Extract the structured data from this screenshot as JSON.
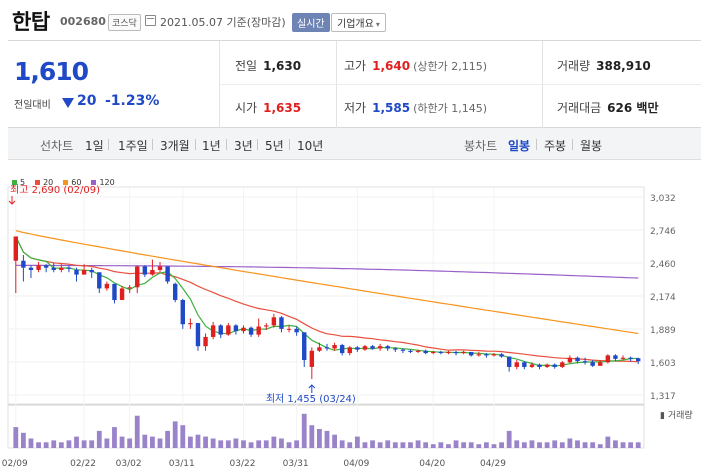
{
  "header": {
    "name": "한탑",
    "code": "002680",
    "market": "코스닥",
    "date": "2021.05.07 기준(장마감)",
    "realtime_label": "실시간",
    "overview_label": "기업개요"
  },
  "quote": {
    "price": "1,610",
    "change_label": "전일대비",
    "change": "20",
    "change_pct": "-1.23%",
    "prev_close_label": "전일",
    "prev_close": "1,630",
    "open_label": "시가",
    "open": "1,635",
    "high_label": "고가",
    "high": "1,640",
    "upper_limit": "(상한가 2,115)",
    "low_label": "저가",
    "low": "1,585",
    "lower_limit": "(하한가 1,145)",
    "volume_label": "거래량",
    "volume": "388,910",
    "amount_label": "거래대금",
    "amount": "626 백만"
  },
  "period_bar": {
    "line_chart_label": "선차트",
    "line_periods": [
      "1일",
      "1주일",
      "3개월",
      "1년",
      "3년",
      "5년",
      "10년"
    ],
    "candle_chart_label": "봉차트",
    "candle_periods": [
      "일봉",
      "주봉",
      "월봉"
    ],
    "selected_candle": "일봉"
  },
  "colors": {
    "up": "#e0201f",
    "down": "#1f49c6",
    "ma5": "#3db23d",
    "ma20": "#e84f3d",
    "ma60": "#f7941d",
    "ma120": "#9a5fc9",
    "volume": "#9a83c9"
  },
  "chart_data": {
    "type": "candlestick",
    "legend": [
      "5",
      "20",
      "60",
      "120"
    ],
    "y_ticks": [
      "3,032",
      "2,746",
      "2,460",
      "2,174",
      "1,889",
      "1,603",
      "1,317"
    ],
    "ylim": [
      1317,
      3032
    ],
    "x_ticks": [
      "02/09",
      "02/22",
      "03/02",
      "03/11",
      "03/22",
      "03/31",
      "04/09",
      "04/20",
      "04/29"
    ],
    "volume_label": "거래량",
    "high_annotation": "최고 2,690 (02/09)",
    "low_annotation": "최저 1,455 (03/24)",
    "candles": [
      {
        "o": 2480,
        "c": 2690,
        "h": 2690,
        "l": 2200
      },
      {
        "o": 2480,
        "c": 2420,
        "h": 2530,
        "l": 2300
      },
      {
        "o": 2420,
        "c": 2400,
        "h": 2440,
        "l": 2330
      },
      {
        "o": 2400,
        "c": 2440,
        "h": 2470,
        "l": 2380
      },
      {
        "o": 2440,
        "c": 2420,
        "h": 2450,
        "l": 2380
      },
      {
        "o": 2420,
        "c": 2400,
        "h": 2460,
        "l": 2380
      },
      {
        "o": 2400,
        "c": 2420,
        "h": 2450,
        "l": 2380
      },
      {
        "o": 2420,
        "c": 2410,
        "h": 2440,
        "l": 2380
      },
      {
        "o": 2400,
        "c": 2360,
        "h": 2420,
        "l": 2300
      },
      {
        "o": 2360,
        "c": 2400,
        "h": 2450,
        "l": 2360
      },
      {
        "o": 2400,
        "c": 2380,
        "h": 2420,
        "l": 2330
      },
      {
        "o": 2380,
        "c": 2240,
        "h": 2380,
        "l": 2200
      },
      {
        "o": 2240,
        "c": 2280,
        "h": 2300,
        "l": 2220
      },
      {
        "o": 2280,
        "c": 2140,
        "h": 2280,
        "l": 2110
      },
      {
        "o": 2140,
        "c": 2240,
        "h": 2260,
        "l": 2140
      },
      {
        "o": 2240,
        "c": 2250,
        "h": 2270,
        "l": 2200
      },
      {
        "o": 2250,
        "c": 2430,
        "h": 2440,
        "l": 2200
      },
      {
        "o": 2430,
        "c": 2360,
        "h": 2440,
        "l": 2340
      },
      {
        "o": 2360,
        "c": 2400,
        "h": 2490,
        "l": 2350
      },
      {
        "o": 2400,
        "c": 2430,
        "h": 2470,
        "l": 2380
      },
      {
        "o": 2430,
        "c": 2300,
        "h": 2430,
        "l": 2280
      },
      {
        "o": 2280,
        "c": 2140,
        "h": 2290,
        "l": 2120
      },
      {
        "o": 2140,
        "c": 1930,
        "h": 2150,
        "l": 1890
      },
      {
        "o": 1930,
        "c": 1940,
        "h": 1980,
        "l": 1890
      },
      {
        "o": 1940,
        "c": 1740,
        "h": 1940,
        "l": 1700
      },
      {
        "o": 1740,
        "c": 1820,
        "h": 1850,
        "l": 1700
      },
      {
        "o": 1820,
        "c": 1920,
        "h": 1950,
        "l": 1800
      },
      {
        "o": 1920,
        "c": 1840,
        "h": 1930,
        "l": 1810
      },
      {
        "o": 1840,
        "c": 1920,
        "h": 1940,
        "l": 1830
      },
      {
        "o": 1920,
        "c": 1870,
        "h": 1930,
        "l": 1840
      },
      {
        "o": 1870,
        "c": 1900,
        "h": 1920,
        "l": 1850
      },
      {
        "o": 1900,
        "c": 1840,
        "h": 1910,
        "l": 1820
      },
      {
        "o": 1840,
        "c": 1910,
        "h": 1980,
        "l": 1820
      },
      {
        "o": 1910,
        "c": 1920,
        "h": 1940,
        "l": 1880
      },
      {
        "o": 1920,
        "c": 1990,
        "h": 2020,
        "l": 1900
      },
      {
        "o": 1990,
        "c": 1890,
        "h": 2000,
        "l": 1860
      },
      {
        "o": 1890,
        "c": 1890,
        "h": 1920,
        "l": 1860
      },
      {
        "o": 1890,
        "c": 1860,
        "h": 1910,
        "l": 1830
      },
      {
        "o": 1860,
        "c": 1620,
        "h": 1860,
        "l": 1560
      },
      {
        "o": 1560,
        "c": 1700,
        "h": 1730,
        "l": 1455
      },
      {
        "o": 1700,
        "c": 1730,
        "h": 1770,
        "l": 1690
      },
      {
        "o": 1730,
        "c": 1720,
        "h": 1760,
        "l": 1700
      },
      {
        "o": 1720,
        "c": 1750,
        "h": 1770,
        "l": 1700
      },
      {
        "o": 1750,
        "c": 1680,
        "h": 1760,
        "l": 1660
      },
      {
        "o": 1680,
        "c": 1730,
        "h": 1740,
        "l": 1660
      },
      {
        "o": 1730,
        "c": 1710,
        "h": 1740,
        "l": 1690
      },
      {
        "o": 1710,
        "c": 1740,
        "h": 1750,
        "l": 1700
      },
      {
        "o": 1740,
        "c": 1720,
        "h": 1750,
        "l": 1710
      },
      {
        "o": 1720,
        "c": 1740,
        "h": 1760,
        "l": 1700
      },
      {
        "o": 1740,
        "c": 1720,
        "h": 1750,
        "l": 1700
      },
      {
        "o": 1720,
        "c": 1710,
        "h": 1730,
        "l": 1690
      },
      {
        "o": 1710,
        "c": 1700,
        "h": 1720,
        "l": 1680
      },
      {
        "o": 1700,
        "c": 1690,
        "h": 1710,
        "l": 1680
      },
      {
        "o": 1690,
        "c": 1700,
        "h": 1710,
        "l": 1680
      },
      {
        "o": 1700,
        "c": 1680,
        "h": 1710,
        "l": 1670
      },
      {
        "o": 1680,
        "c": 1690,
        "h": 1700,
        "l": 1670
      },
      {
        "o": 1690,
        "c": 1680,
        "h": 1700,
        "l": 1670
      },
      {
        "o": 1680,
        "c": 1690,
        "h": 1700,
        "l": 1670
      },
      {
        "o": 1690,
        "c": 1680,
        "h": 1700,
        "l": 1660
      },
      {
        "o": 1680,
        "c": 1690,
        "h": 1700,
        "l": 1670
      },
      {
        "o": 1690,
        "c": 1660,
        "h": 1690,
        "l": 1650
      },
      {
        "o": 1660,
        "c": 1670,
        "h": 1690,
        "l": 1650
      },
      {
        "o": 1670,
        "c": 1660,
        "h": 1680,
        "l": 1640
      },
      {
        "o": 1660,
        "c": 1670,
        "h": 1680,
        "l": 1650
      },
      {
        "o": 1670,
        "c": 1650,
        "h": 1680,
        "l": 1640
      },
      {
        "o": 1650,
        "c": 1560,
        "h": 1650,
        "l": 1520
      },
      {
        "o": 1560,
        "c": 1600,
        "h": 1620,
        "l": 1540
      },
      {
        "o": 1600,
        "c": 1560,
        "h": 1610,
        "l": 1540
      },
      {
        "o": 1560,
        "c": 1580,
        "h": 1600,
        "l": 1550
      },
      {
        "o": 1580,
        "c": 1560,
        "h": 1590,
        "l": 1540
      },
      {
        "o": 1560,
        "c": 1580,
        "h": 1590,
        "l": 1550
      },
      {
        "o": 1580,
        "c": 1560,
        "h": 1590,
        "l": 1545
      },
      {
        "o": 1560,
        "c": 1600,
        "h": 1610,
        "l": 1550
      },
      {
        "o": 1600,
        "c": 1640,
        "h": 1660,
        "l": 1590
      },
      {
        "o": 1640,
        "c": 1610,
        "h": 1650,
        "l": 1590
      },
      {
        "o": 1610,
        "c": 1600,
        "h": 1640,
        "l": 1580
      },
      {
        "o": 1600,
        "c": 1570,
        "h": 1620,
        "l": 1560
      },
      {
        "o": 1570,
        "c": 1600,
        "h": 1620,
        "l": 1570
      },
      {
        "o": 1600,
        "c": 1660,
        "h": 1670,
        "l": 1590
      },
      {
        "o": 1660,
        "c": 1630,
        "h": 1670,
        "l": 1610
      },
      {
        "o": 1630,
        "c": 1640,
        "h": 1660,
        "l": 1620
      },
      {
        "o": 1640,
        "c": 1630,
        "h": 1650,
        "l": 1610
      },
      {
        "o": 1635,
        "c": 1610,
        "h": 1640,
        "l": 1585
      }
    ],
    "volume": [
      0.55,
      0.4,
      0.25,
      0.15,
      0.15,
      0.2,
      0.15,
      0.2,
      0.3,
      0.2,
      0.2,
      0.45,
      0.25,
      0.55,
      0.3,
      0.25,
      0.85,
      0.35,
      0.3,
      0.25,
      0.45,
      0.7,
      0.6,
      0.3,
      0.35,
      0.3,
      0.25,
      0.2,
      0.2,
      0.25,
      0.2,
      0.15,
      0.2,
      0.2,
      0.3,
      0.25,
      0.15,
      0.2,
      0.9,
      0.6,
      0.5,
      0.45,
      0.35,
      0.2,
      0.15,
      0.3,
      0.15,
      0.2,
      0.15,
      0.2,
      0.15,
      0.15,
      0.15,
      0.2,
      0.15,
      0.1,
      0.15,
      0.1,
      0.2,
      0.15,
      0.15,
      0.1,
      0.15,
      0.1,
      0.15,
      0.45,
      0.2,
      0.15,
      0.2,
      0.15,
      0.15,
      0.2,
      0.15,
      0.25,
      0.2,
      0.15,
      0.15,
      0.1,
      0.3,
      0.2,
      0.15,
      0.15,
      0.15
    ]
  }
}
